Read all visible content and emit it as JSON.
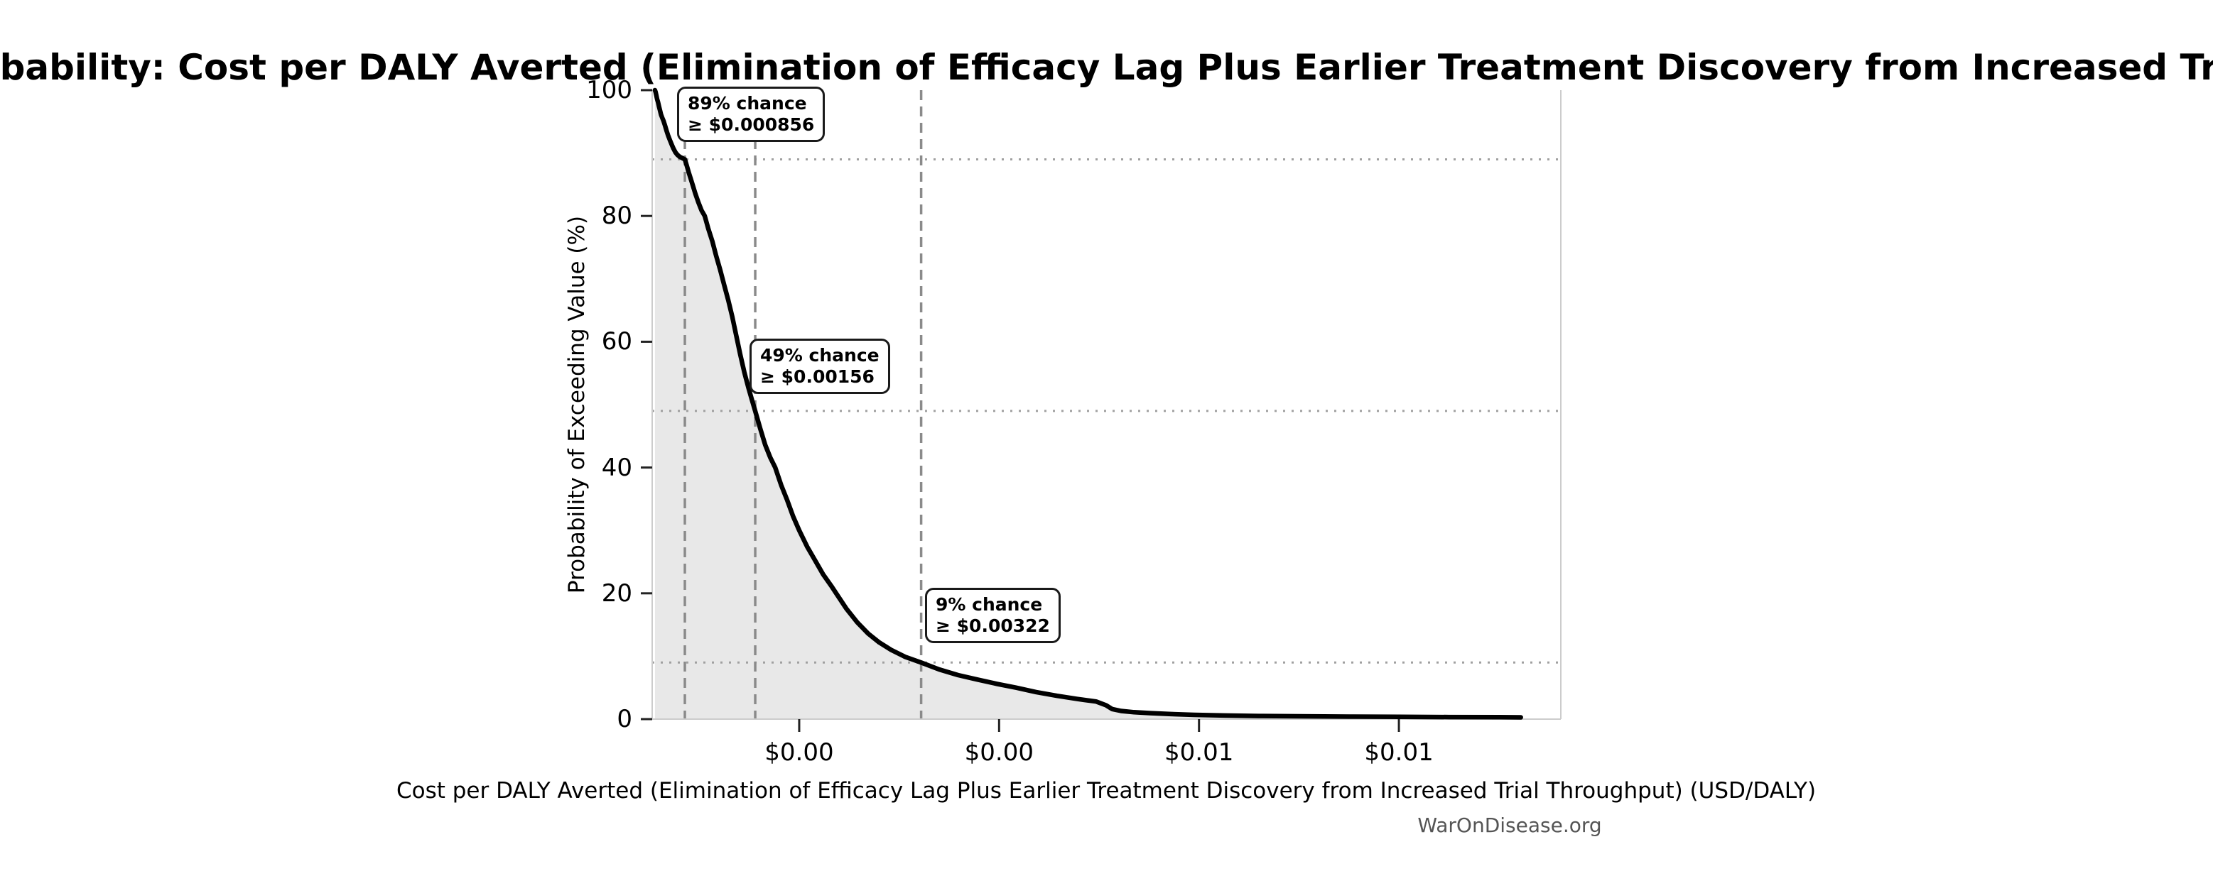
{
  "chart_data": {
    "type": "line",
    "title": "Exceedance Probability: Cost per DALY Averted (Elimination of Efficacy Lag Plus Earlier Treatment Discovery from Increased Trial Throughput)",
    "xlabel": "Cost per DALY Averted (Elimination of Efficacy Lag Plus Earlier Treatment Discovery from Increased Trial Throughput) (USD/DALY)",
    "ylabel": "Probability of Exceeding Value (%)",
    "watermark": "WarOnDisease.org",
    "xlim": [
      0.000529,
      0.00962
    ],
    "ylim": [
      0,
      100
    ],
    "legend": "none",
    "grid": "dotted horizontal reference lines at annotation probabilities; dashed vertical reference lines at annotation values",
    "x_ticks": [
      {
        "value": 0.002,
        "label": "$0.00"
      },
      {
        "value": 0.004,
        "label": "$0.00"
      },
      {
        "value": 0.006,
        "label": "$0.01"
      },
      {
        "value": 0.008,
        "label": "$0.01"
      }
    ],
    "y_ticks": [
      {
        "value": 0,
        "label": "0"
      },
      {
        "value": 20,
        "label": "20"
      },
      {
        "value": 40,
        "label": "40"
      },
      {
        "value": 60,
        "label": "60"
      },
      {
        "value": 80,
        "label": "80"
      },
      {
        "value": 100,
        "label": "100"
      }
    ],
    "annotations": [
      {
        "pct": 89,
        "value": 0.000856,
        "line1": "89% chance",
        "line2": "≥ $0.000856"
      },
      {
        "pct": 49,
        "value": 0.00156,
        "line1": "49% chance",
        "line2": "≥ $0.00156"
      },
      {
        "pct": 9,
        "value": 0.00322,
        "line1": "9% chance",
        "line2": "≥ $0.00322"
      }
    ],
    "series": [
      {
        "name": "exceedance-curve",
        "points": [
          [
            0.000557,
            100
          ],
          [
            0.000563,
            99.7
          ],
          [
            0.00057,
            99.2
          ],
          [
            0.000578,
            98.6
          ],
          [
            0.000587,
            98.1
          ],
          [
            0.000597,
            97.4
          ],
          [
            0.000607,
            96.8
          ],
          [
            0.000618,
            96.1
          ],
          [
            0.00063,
            95.6
          ],
          [
            0.000643,
            95.1
          ],
          [
            0.000657,
            94.4
          ],
          [
            0.000672,
            93.6
          ],
          [
            0.000688,
            92.8
          ],
          [
            0.000705,
            92.1
          ],
          [
            0.000723,
            91.4
          ],
          [
            0.000742,
            90.7
          ],
          [
            0.000762,
            90.1
          ],
          [
            0.000783,
            89.7
          ],
          [
            0.000805,
            89.4
          ],
          [
            0.00083,
            89.2
          ],
          [
            0.000856,
            89.0
          ],
          [
            0.000875,
            88.0
          ],
          [
            0.000895,
            86.9
          ],
          [
            0.000915,
            85.9
          ],
          [
            0.000935,
            84.9
          ],
          [
            0.00096,
            83.6
          ],
          [
            0.00099,
            82.2
          ],
          [
            0.001022,
            80.9
          ],
          [
            0.001055,
            80.0
          ],
          [
            0.00109,
            78.0
          ],
          [
            0.00113,
            76.0
          ],
          [
            0.00117,
            73.6
          ],
          [
            0.00121,
            71.4
          ],
          [
            0.00125,
            69.0
          ],
          [
            0.00129,
            66.6
          ],
          [
            0.00133,
            64.0
          ],
          [
            0.00137,
            61.0
          ],
          [
            0.00141,
            58.0
          ],
          [
            0.00145,
            55.2
          ],
          [
            0.00149,
            52.8
          ],
          [
            0.00153,
            50.6
          ],
          [
            0.00156,
            49.0
          ],
          [
            0.00161,
            46.2
          ],
          [
            0.00166,
            43.6
          ],
          [
            0.00171,
            41.6
          ],
          [
            0.00176,
            40.0
          ],
          [
            0.00182,
            37.2
          ],
          [
            0.00188,
            34.8
          ],
          [
            0.00194,
            32.2
          ],
          [
            0.002,
            30.0
          ],
          [
            0.00208,
            27.4
          ],
          [
            0.00216,
            25.2
          ],
          [
            0.00224,
            23.0
          ],
          [
            0.00232,
            21.2
          ],
          [
            0.00237,
            20.0
          ],
          [
            0.00247,
            17.6
          ],
          [
            0.00258,
            15.4
          ],
          [
            0.00269,
            13.6
          ],
          [
            0.0028,
            12.2
          ],
          [
            0.00292,
            11.0
          ],
          [
            0.00306,
            9.9
          ],
          [
            0.00322,
            9.0
          ],
          [
            0.0034,
            7.9
          ],
          [
            0.00359,
            7.0
          ],
          [
            0.00378,
            6.3
          ],
          [
            0.00398,
            5.6
          ],
          [
            0.00417,
            5.0
          ],
          [
            0.00437,
            4.3
          ],
          [
            0.00458,
            3.7
          ],
          [
            0.00478,
            3.2
          ],
          [
            0.00497,
            2.8
          ],
          [
            0.00507,
            2.2
          ],
          [
            0.00513,
            1.6
          ],
          [
            0.00522,
            1.3
          ],
          [
            0.00535,
            1.1
          ],
          [
            0.00552,
            0.95
          ],
          [
            0.00572,
            0.8
          ],
          [
            0.00595,
            0.68
          ],
          [
            0.00625,
            0.58
          ],
          [
            0.0066,
            0.5
          ],
          [
            0.007,
            0.45
          ],
          [
            0.0075,
            0.4
          ],
          [
            0.008,
            0.37
          ],
          [
            0.0085,
            0.33
          ],
          [
            0.009,
            0.3
          ],
          [
            0.00922,
            0.28
          ]
        ]
      }
    ],
    "colors": {
      "curve": "#000000",
      "fill": "#e8e8e8",
      "dashed_line": "#8a8a8a",
      "dotted_line": "#a0a0a0",
      "spine": "#cccccc",
      "tick_mark": "#222222",
      "watermark": "#555555"
    }
  }
}
